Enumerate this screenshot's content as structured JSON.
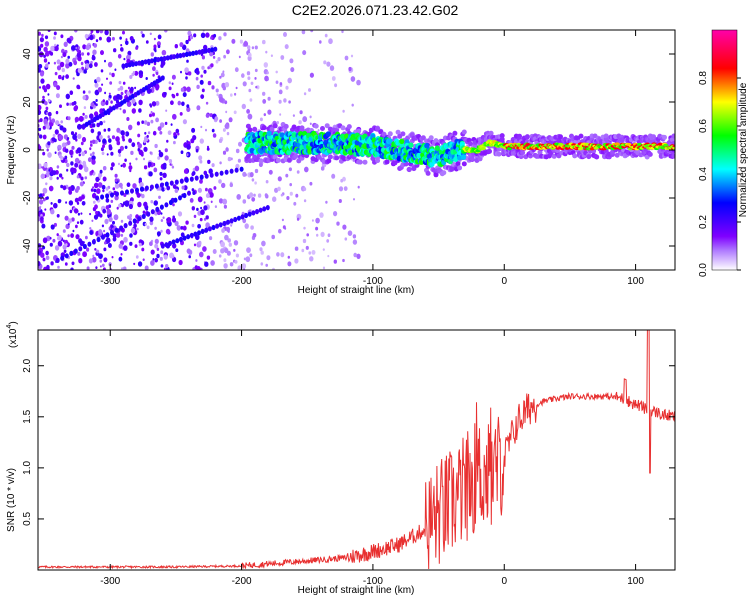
{
  "page_title": "C2E2.2026.071.23.42.G02",
  "chart_data": [
    {
      "type": "heatmap",
      "title": "C2E2.2026.071.23.42.G02",
      "xlabel": "Height of straight line (km)",
      "ylabel": "Frequency (Hz)",
      "xlim": [
        -355,
        130
      ],
      "ylim": [
        -50,
        50
      ],
      "xticks": [
        -300,
        -200,
        -100,
        0,
        100
      ],
      "yticks": [
        -40,
        -20,
        0,
        20,
        40
      ],
      "colorbar": {
        "label": "Normalized spectral amplitude",
        "range": [
          0,
          1
        ],
        "ticks": [
          0.0,
          0.2,
          0.4,
          0.6,
          0.8
        ],
        "tick_labels": [
          "0.0",
          "0.2",
          "0.4",
          "0.6",
          "0.8"
        ],
        "colormap": [
          "#ffffff",
          "#7f00ff",
          "#0000ff",
          "#00ffff",
          "#00ff00",
          "#ffff00",
          "#ff0000",
          "#ff00cc"
        ]
      },
      "signal_track": [
        {
          "x": -195,
          "y": 3
        },
        {
          "x": -150,
          "y": 3
        },
        {
          "x": -100,
          "y": 2
        },
        {
          "x": -80,
          "y": 0
        },
        {
          "x": -50,
          "y": -3
        },
        {
          "x": -35,
          "y": 0
        },
        {
          "x": -20,
          "y": 0
        },
        {
          "x": -12,
          "y": 3
        },
        {
          "x": 0,
          "y": 1.5
        },
        {
          "x": 50,
          "y": 1.5
        },
        {
          "x": 100,
          "y": 1.5
        },
        {
          "x": 130,
          "y": 1.5
        }
      ],
      "noise_region": {
        "x_from": -355,
        "x_to": -130
      }
    },
    {
      "type": "line",
      "xlabel": "Height of straight line (km)",
      "ylabel": "SNR (10 * v/v)",
      "y_scale_label": "(x10",
      "y_scale_exponent": "4",
      "xlim": [
        -355,
        130
      ],
      "ylim": [
        0,
        2.35
      ],
      "xticks": [
        -300,
        -200,
        -100,
        0,
        100
      ],
      "yticks": [
        0.5,
        1.0,
        1.5,
        2.0
      ],
      "ytick_labels": [
        "0.5",
        "1.0",
        "1.5",
        "2.0"
      ],
      "series": [
        {
          "name": "SNR",
          "color": "#e83030",
          "x": [
            -355,
            -300,
            -250,
            -200,
            -180,
            -160,
            -140,
            -120,
            -100,
            -80,
            -60,
            -50,
            -40,
            -30,
            -20,
            -10,
            0,
            10,
            20,
            30,
            40,
            50,
            60,
            70,
            80,
            90,
            100,
            105,
            110,
            115,
            120,
            130
          ],
          "y": [
            0.03,
            0.03,
            0.03,
            0.04,
            0.06,
            0.08,
            0.1,
            0.12,
            0.18,
            0.25,
            0.4,
            0.55,
            0.65,
            0.8,
            0.95,
            0.9,
            1.1,
            1.45,
            1.6,
            1.65,
            1.68,
            1.7,
            1.7,
            1.7,
            1.7,
            1.68,
            1.62,
            1.6,
            1.55,
            1.55,
            1.52,
            1.5
          ]
        }
      ]
    }
  ]
}
